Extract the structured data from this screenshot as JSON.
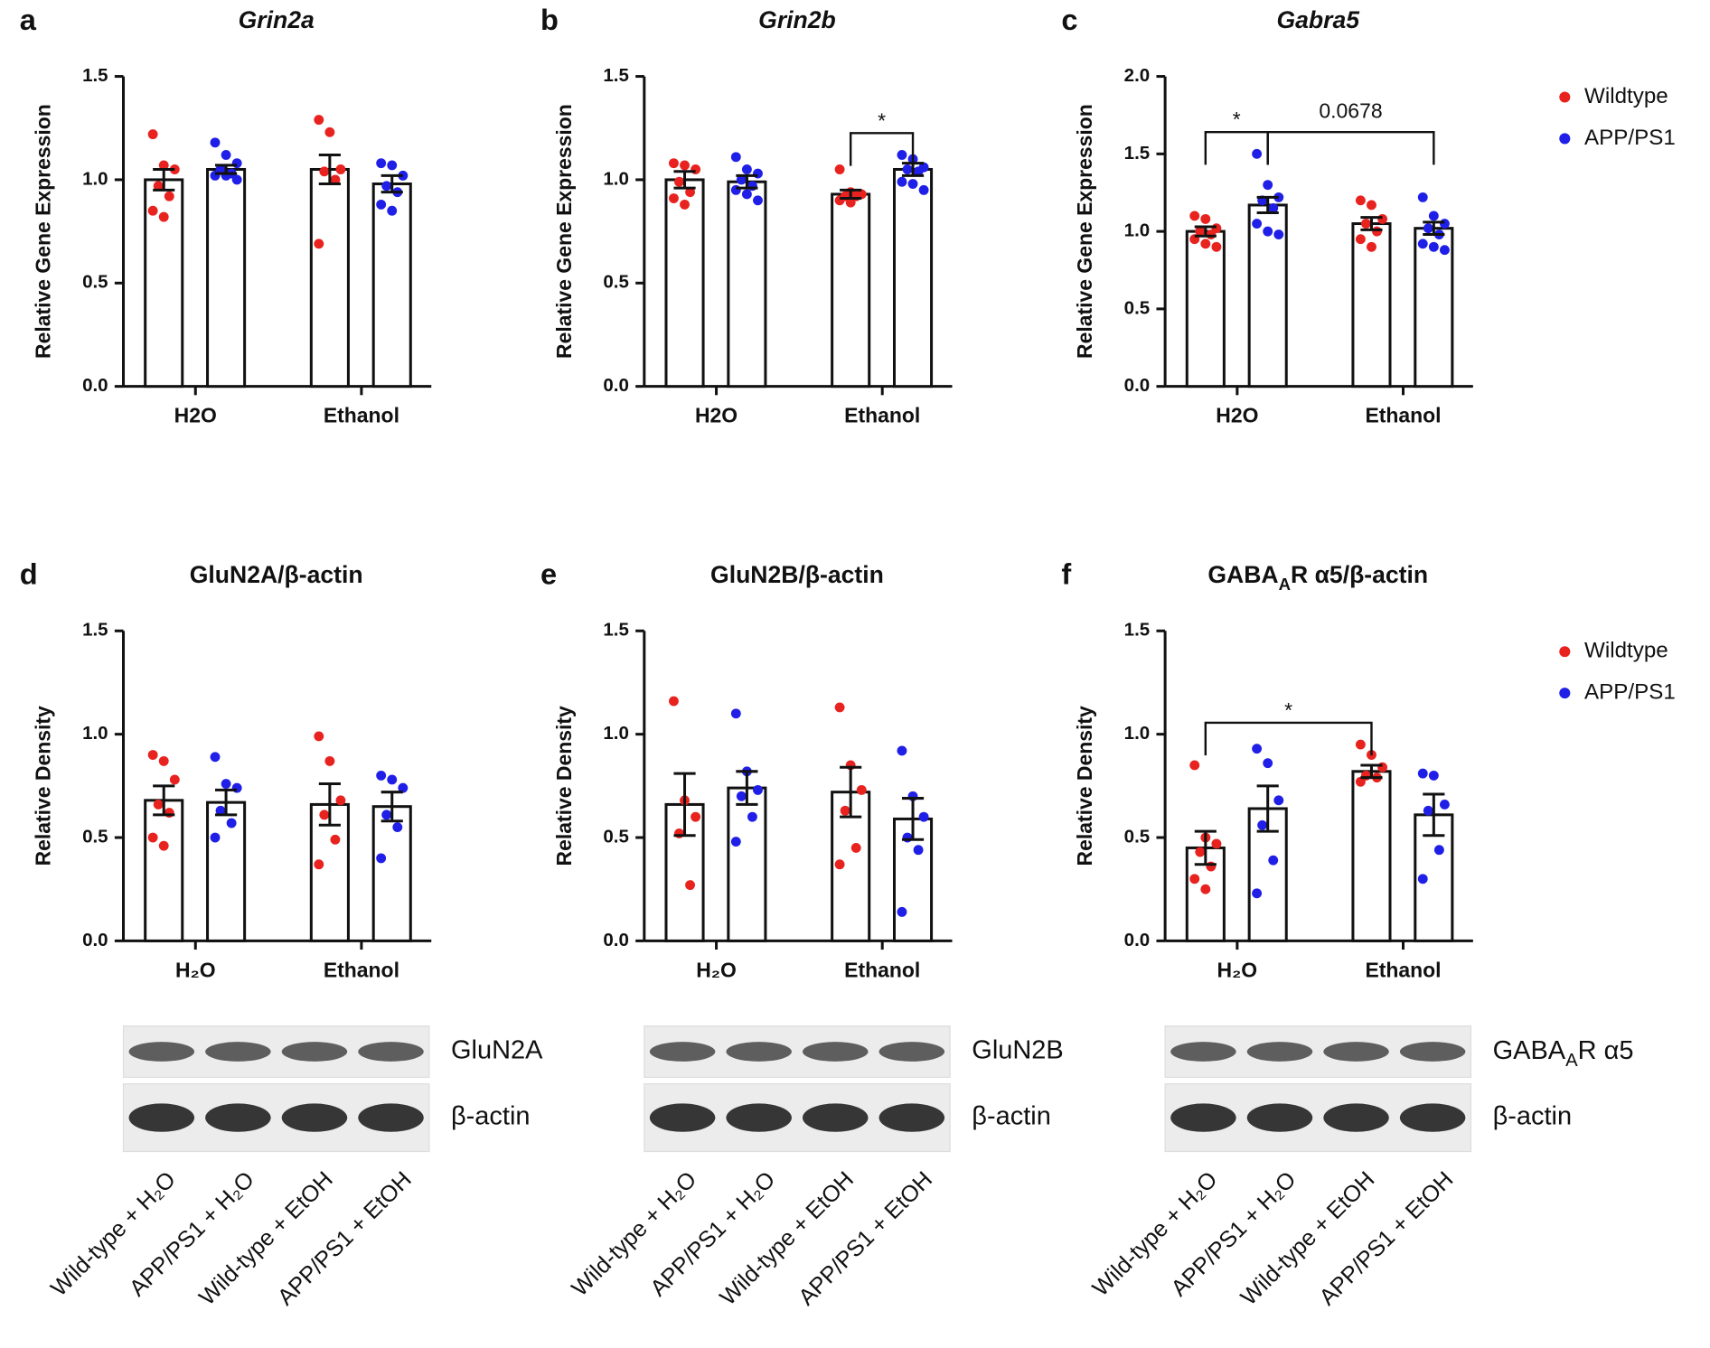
{
  "chart_data": [
    {
      "type": "bar",
      "panel": "a",
      "title": "Grin2a",
      "title_italic": true,
      "ylabel": "Relative Gene Expression",
      "categories": [
        "H2O",
        "Ethanol"
      ],
      "ylim": [
        0,
        1.5
      ],
      "yticks": [
        {
          "value": 0,
          "label": "0.0"
        },
        0.5,
        {
          "value": 1,
          "label": "1.0"
        },
        1.5
      ],
      "series": [
        {
          "name": "Wildtype",
          "color": "#e8221f",
          "values": [
            1.0,
            1.05
          ],
          "errors": [
            0.05,
            0.07
          ],
          "points": [
            [
              1.22,
              1.07,
              1.05,
              0.97,
              0.92,
              0.85,
              0.82
            ],
            [
              1.29,
              1.23,
              1.05,
              1.04,
              1.0,
              0.69
            ]
          ]
        },
        {
          "name": "APP/PS1",
          "color": "#1f1fe8",
          "values": [
            1.05,
            0.98
          ],
          "errors": [
            0.02,
            0.04
          ],
          "points": [
            [
              1.18,
              1.12,
              1.08,
              1.05,
              1.03,
              1.02,
              1.02,
              1.0
            ],
            [
              1.08,
              1.07,
              1.02,
              0.97,
              0.94,
              0.88,
              0.85
            ]
          ]
        }
      ]
    },
    {
      "type": "bar",
      "panel": "b",
      "title": "Grin2b",
      "title_italic": true,
      "ylabel": "Relative Gene Expression",
      "categories": [
        "H2O",
        "Ethanol"
      ],
      "ylim": [
        0,
        1.5
      ],
      "yticks": [
        {
          "value": 0,
          "label": "0.0"
        },
        0.5,
        {
          "value": 1,
          "label": "1.0"
        },
        1.5
      ],
      "series": [
        {
          "name": "Wildtype",
          "color": "#e8221f",
          "values": [
            1.0,
            0.93
          ],
          "errors": [
            0.04,
            0.02
          ],
          "points": [
            [
              1.08,
              1.07,
              1.05,
              0.99,
              0.94,
              0.91,
              0.88
            ],
            [
              1.05,
              0.94,
              0.93,
              0.92,
              0.92,
              0.9,
              0.89
            ]
          ]
        },
        {
          "name": "APP/PS1",
          "color": "#1f1fe8",
          "values": [
            0.99,
            1.05
          ],
          "errors": [
            0.03,
            0.03
          ],
          "points": [
            [
              1.11,
              1.05,
              1.03,
              1.0,
              0.97,
              0.95,
              0.93,
              0.9
            ],
            [
              1.12,
              1.1,
              1.06,
              1.05,
              1.04,
              0.99,
              0.98,
              0.95
            ]
          ]
        }
      ],
      "annotations": [
        {
          "text": "*",
          "bars": [
            [
              1,
              0
            ],
            [
              1,
              1
            ]
          ]
        }
      ]
    },
    {
      "type": "bar",
      "panel": "c",
      "title": "Gabra5",
      "title_italic": true,
      "ylabel": "Relative Gene Expression",
      "categories": [
        "H2O",
        "Ethanol"
      ],
      "ylim": [
        0,
        2
      ],
      "yticks": [
        {
          "value": 0,
          "label": "0.0"
        },
        0.5,
        {
          "value": 1,
          "label": "1.0"
        },
        1.5,
        {
          "value": 2,
          "label": "2.0"
        }
      ],
      "legend": "right",
      "series": [
        {
          "name": "Wildtype",
          "color": "#e8221f",
          "values": [
            1.0,
            1.05
          ],
          "errors": [
            0.03,
            0.04
          ],
          "points": [
            [
              1.1,
              1.08,
              1.02,
              1.0,
              0.98,
              0.95,
              0.92,
              0.9
            ],
            [
              1.2,
              1.17,
              1.08,
              1.05,
              1.0,
              0.95,
              0.9
            ]
          ]
        },
        {
          "name": "APP/PS1",
          "color": "#1f1fe8",
          "values": [
            1.17,
            1.02
          ],
          "errors": [
            0.05,
            0.04
          ],
          "points": [
            [
              1.5,
              1.3,
              1.22,
              1.2,
              1.15,
              1.05,
              1.0,
              0.98
            ],
            [
              1.22,
              1.1,
              1.05,
              1.02,
              0.98,
              0.92,
              0.9,
              0.88
            ]
          ]
        }
      ],
      "annotations": [
        {
          "text": "*",
          "bars": [
            [
              0,
              0
            ],
            [
              0,
              1
            ]
          ]
        },
        {
          "text": "0.0678",
          "bars": [
            [
              0,
              1
            ],
            [
              1,
              1
            ]
          ]
        }
      ]
    },
    {
      "type": "bar",
      "panel": "d",
      "title": "GluN2A/β-actin",
      "ylabel": "Relative Density",
      "categories": [
        "H₂O",
        "Ethanol"
      ],
      "ylim": [
        0,
        1.5
      ],
      "yticks": [
        {
          "value": 0,
          "label": "0.0"
        },
        0.5,
        {
          "value": 1,
          "label": "1.0"
        },
        1.5
      ],
      "series": [
        {
          "name": "Wildtype",
          "color": "#e8221f",
          "values": [
            0.68,
            0.66
          ],
          "errors": [
            0.07,
            0.1
          ],
          "points": [
            [
              0.9,
              0.87,
              0.78,
              0.66,
              0.62,
              0.5,
              0.46
            ],
            [
              0.99,
              0.87,
              0.68,
              0.61,
              0.49,
              0.37
            ]
          ]
        },
        {
          "name": "APP/PS1",
          "color": "#1f1fe8",
          "values": [
            0.67,
            0.65
          ],
          "errors": [
            0.06,
            0.07
          ],
          "points": [
            [
              0.89,
              0.76,
              0.74,
              0.63,
              0.57,
              0.5
            ],
            [
              0.8,
              0.78,
              0.74,
              0.61,
              0.55,
              0.4
            ]
          ]
        }
      ],
      "blot": {
        "labels": [
          "GluN2A",
          "β-actin"
        ],
        "lanes": [
          "Wild-type + H₂O",
          "APP/PS1 + H₂O",
          "Wild-type + EtOH",
          "APP/PS1 + EtOH"
        ]
      }
    },
    {
      "type": "bar",
      "panel": "e",
      "title": "GluN2B/β-actin",
      "ylabel": "Relative Density",
      "categories": [
        "H₂O",
        "Ethanol"
      ],
      "ylim": [
        0,
        1.5
      ],
      "yticks": [
        {
          "value": 0,
          "label": "0.0"
        },
        0.5,
        {
          "value": 1,
          "label": "1.0"
        },
        1.5
      ],
      "series": [
        {
          "name": "Wildtype",
          "color": "#e8221f",
          "values": [
            0.66,
            0.72
          ],
          "errors": [
            0.15,
            0.12
          ],
          "points": [
            [
              1.16,
              0.68,
              0.6,
              0.52,
              0.27
            ],
            [
              1.13,
              0.85,
              0.73,
              0.63,
              0.45,
              0.37
            ]
          ]
        },
        {
          "name": "APP/PS1",
          "color": "#1f1fe8",
          "values": [
            0.74,
            0.59
          ],
          "errors": [
            0.08,
            0.1
          ],
          "points": [
            [
              1.1,
              0.82,
              0.73,
              0.7,
              0.6,
              0.48
            ],
            [
              0.92,
              0.7,
              0.6,
              0.5,
              0.44,
              0.14
            ]
          ]
        }
      ],
      "blot": {
        "labels": [
          "GluN2B",
          "β-actin"
        ],
        "lanes": [
          "Wild-type + H₂O",
          "APP/PS1 + H₂O",
          "Wild-type + EtOH",
          "APP/PS1 + EtOH"
        ]
      }
    },
    {
      "type": "bar",
      "panel": "f",
      "title": [
        {
          "text": "GABA"
        },
        {
          "text": "A",
          "sub": true
        },
        {
          "text": "R α5/β-actin"
        }
      ],
      "ylabel": "Relative Density",
      "categories": [
        "H₂O",
        "Ethanol"
      ],
      "ylim": [
        0,
        1.5
      ],
      "yticks": [
        {
          "value": 0,
          "label": "0.0"
        },
        0.5,
        {
          "value": 1,
          "label": "1.0"
        },
        1.5
      ],
      "legend": "right",
      "series": [
        {
          "name": "Wildtype",
          "color": "#e8221f",
          "values": [
            0.45,
            0.82
          ],
          "errors": [
            0.08,
            0.03
          ],
          "points": [
            [
              0.85,
              0.5,
              0.47,
              0.43,
              0.36,
              0.3,
              0.25
            ],
            [
              0.95,
              0.9,
              0.84,
              0.8,
              0.79,
              0.77
            ]
          ]
        },
        {
          "name": "APP/PS1",
          "color": "#1f1fe8",
          "values": [
            0.64,
            0.61
          ],
          "errors": [
            0.11,
            0.1
          ],
          "points": [
            [
              0.93,
              0.86,
              0.68,
              0.56,
              0.39,
              0.23
            ],
            [
              0.81,
              0.8,
              0.66,
              0.63,
              0.44,
              0.3
            ]
          ]
        }
      ],
      "annotations": [
        {
          "text": "*",
          "bars": [
            [
              0,
              0
            ],
            [
              1,
              0
            ]
          ]
        }
      ],
      "blot": {
        "labels": [
          [
            {
              "text": "GABA"
            },
            {
              "text": "A",
              "sub": true
            },
            {
              "text": "R α5"
            }
          ],
          "β-actin"
        ],
        "lanes": [
          "Wild-type + H₂O",
          "APP/PS1 + H₂O",
          "Wild-type + EtOH",
          "APP/PS1 + EtOH"
        ]
      }
    }
  ]
}
